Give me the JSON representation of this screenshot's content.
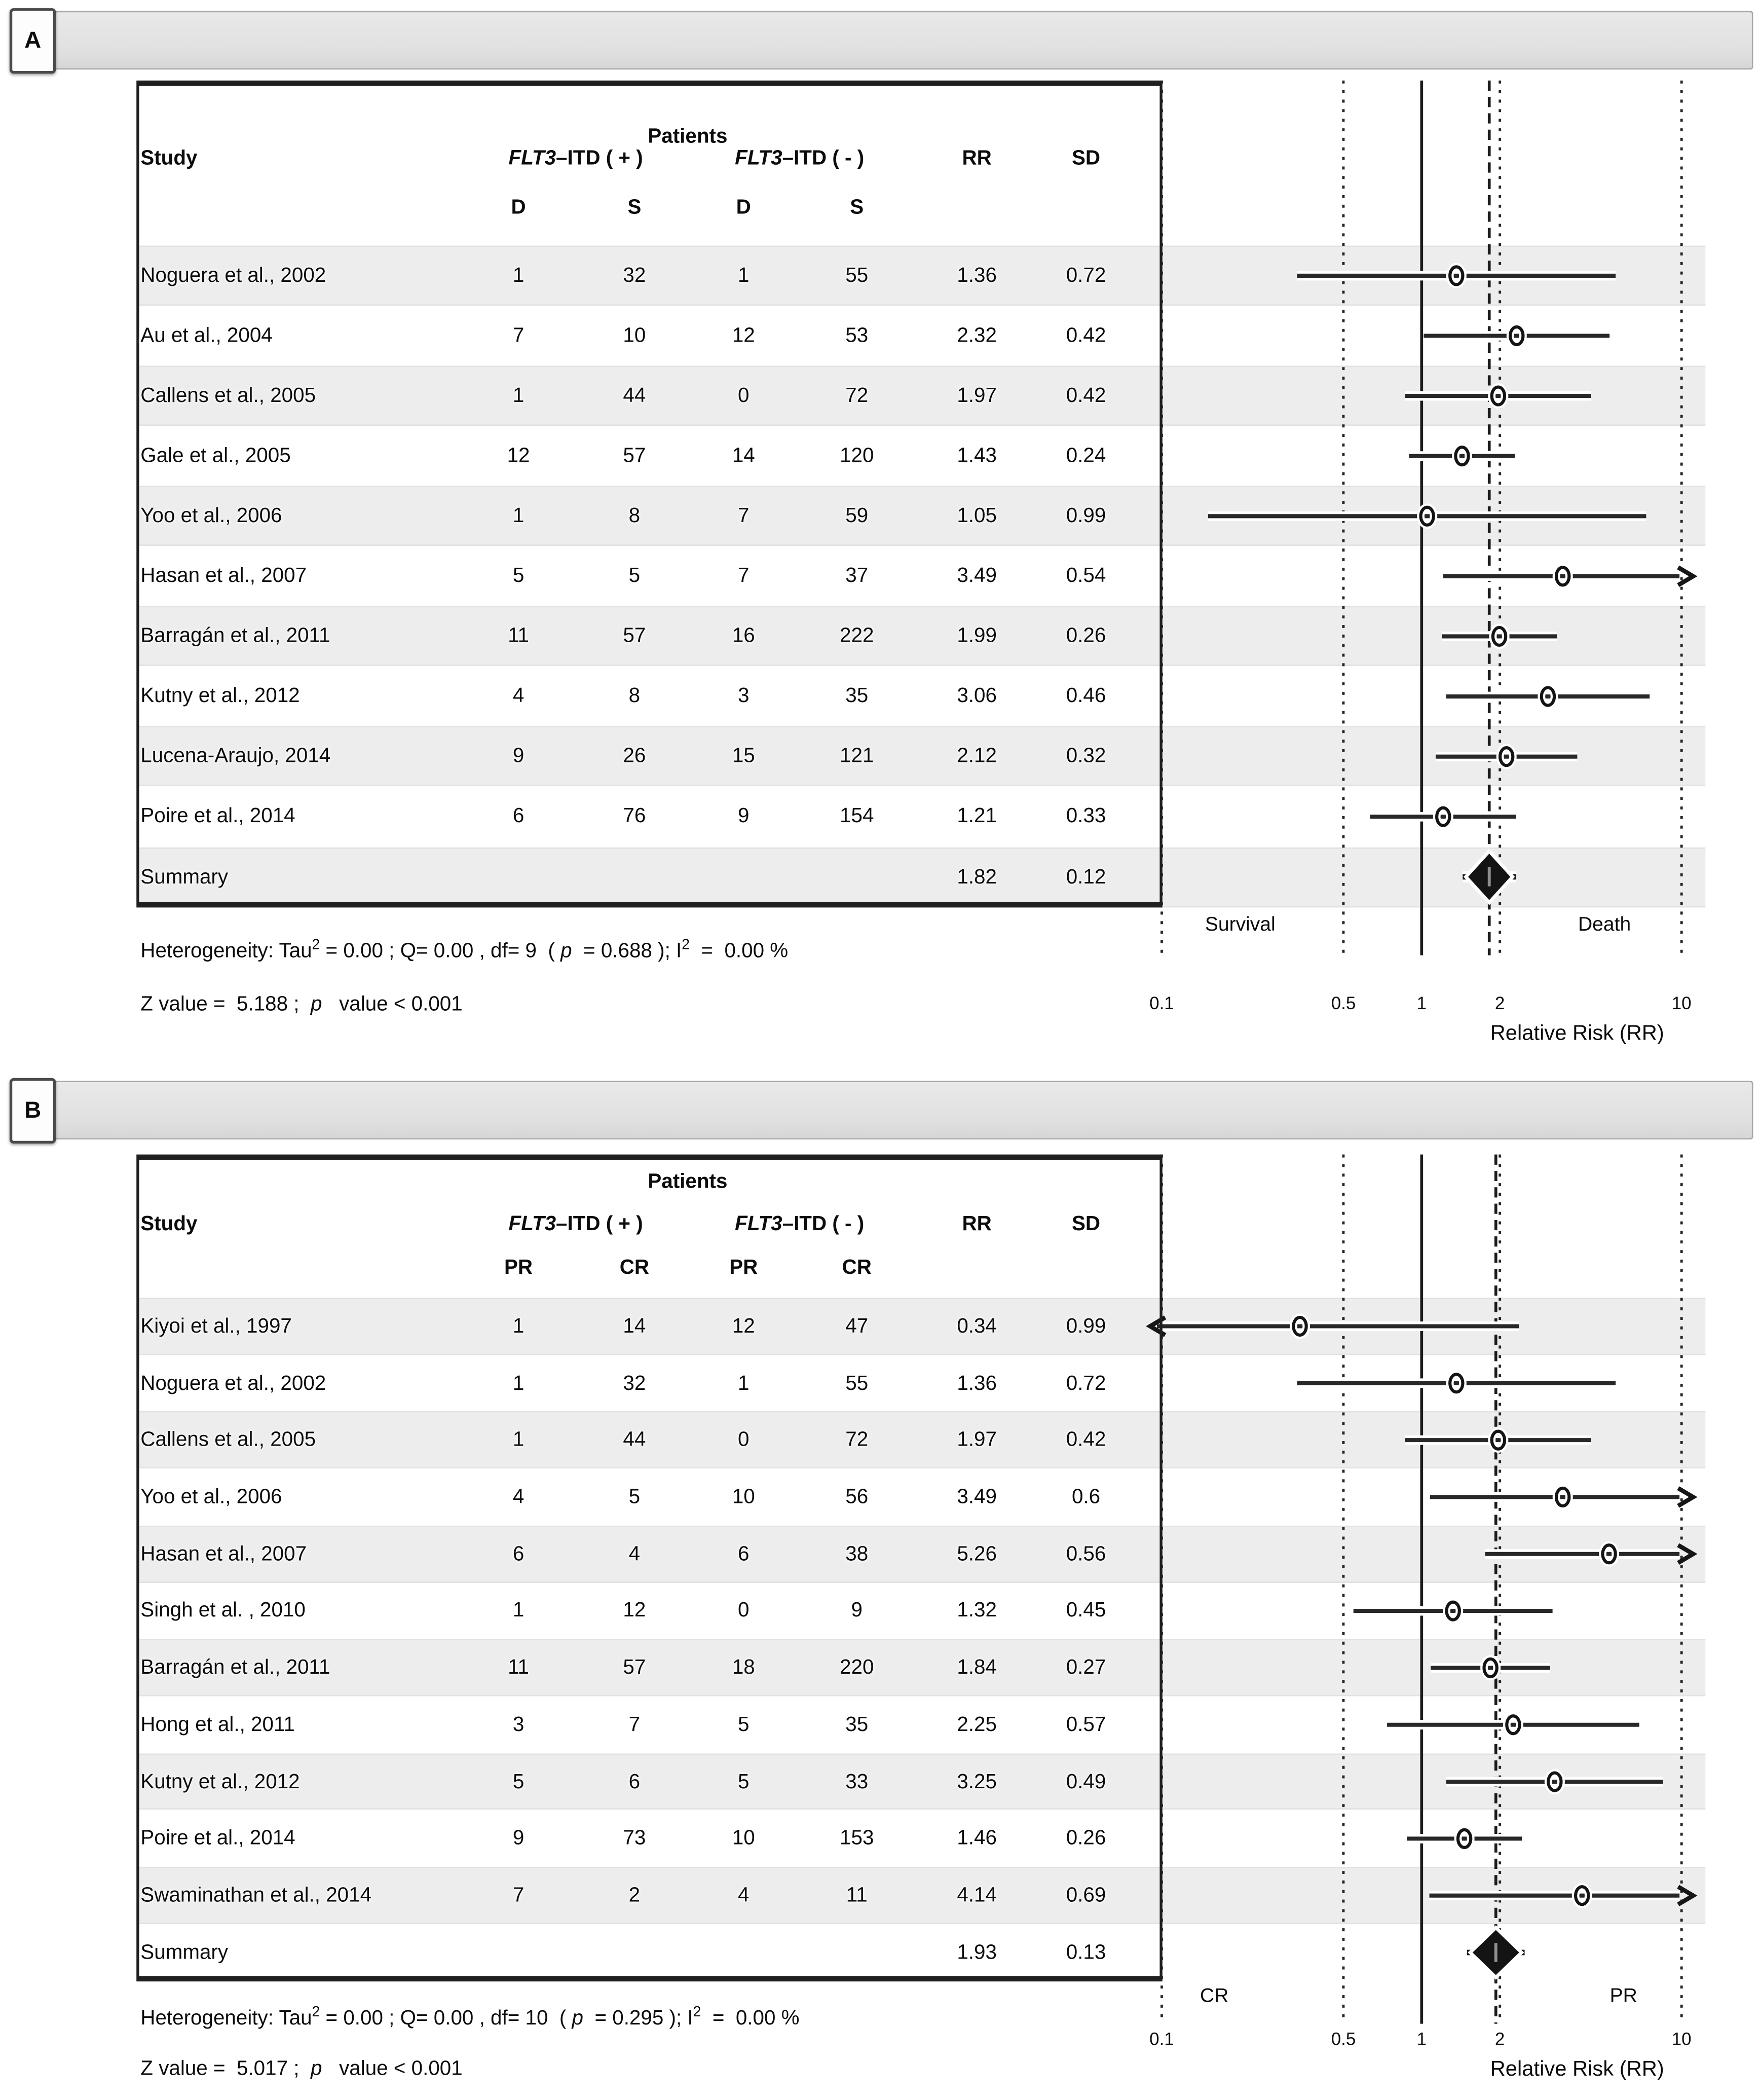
{
  "panels": [
    {
      "label": "A",
      "header": {
        "patients": "Patients",
        "study": "Study",
        "gene": "FLT3",
        "pos_suffix": "–ITD ( + )",
        "neg_suffix": "–ITD ( - )",
        "rr": "RR",
        "sd": "SD",
        "subcols": [
          "D",
          "S",
          "D",
          "S"
        ]
      },
      "summary_label": "Summary",
      "footer": {
        "het_pre": "Heterogeneity: Tau",
        "sup_a": "2",
        "het_mid": " = 0.00 ; Q= 0.00 , df= 9  ( ",
        "p_italic": "p",
        "het_mid2": "  = 0.688 ); I",
        "sup_b": "2",
        "het_end": "  =  0.00 %",
        "z_pre": "Z value =  5.188 ;  ",
        "z_p": "p",
        "z_end": "   value < 0.001"
      },
      "axis": {
        "ticks": [
          "0.1",
          "0.5",
          "1",
          "2",
          "10"
        ],
        "left_label": "Survival",
        "right_label": "Death",
        "title": "Relative Risk (RR)"
      }
    },
    {
      "label": "B",
      "header": {
        "patients": "Patients",
        "study": "Study",
        "gene": "FLT3",
        "pos_suffix": "–ITD ( + )",
        "neg_suffix": "–ITD ( - )",
        "rr": "RR",
        "sd": "SD",
        "subcols": [
          "PR",
          "CR",
          "PR",
          "CR"
        ]
      },
      "summary_label": "Summary",
      "footer": {
        "het_pre": "Heterogeneity: Tau",
        "sup_a": "2",
        "het_mid": " = 0.00 ; Q= 0.00 , df= 10  ( ",
        "p_italic": "p",
        "het_mid2": "  = 0.295 ); I",
        "sup_b": "2",
        "het_end": "  =  0.00 %",
        "z_pre": "Z value =  5.017 ;  ",
        "z_p": "p",
        "z_end": "   value < 0.001"
      },
      "axis": {
        "ticks": [
          "0.1",
          "0.5",
          "1",
          "2",
          "10"
        ],
        "left_label": "CR",
        "right_label": "PR",
        "title": "Relative Risk (RR)"
      }
    }
  ],
  "chart_data": [
    {
      "type": "forest",
      "panel": "A",
      "groups": [
        "FLT3-ITD (+)",
        "FLT3-ITD (-)"
      ],
      "outcome_columns": [
        "D",
        "S",
        "D",
        "S"
      ],
      "x_axis": {
        "scale": "log",
        "min": 0.1,
        "max": 10,
        "ticks": [
          0.1,
          0.5,
          1,
          2,
          10
        ],
        "title": "Relative Risk (RR)",
        "left_region_label": "Survival",
        "right_region_label": "Death",
        "solid_reference_line": 1,
        "dashed_summary_line": 1.82
      },
      "studies": [
        {
          "name": "Noguera et al., 2002",
          "counts": [
            1,
            32,
            1,
            55
          ],
          "rr": 1.36,
          "sd": 0.72
        },
        {
          "name": "Au et al., 2004",
          "counts": [
            7,
            10,
            12,
            53
          ],
          "rr": 2.32,
          "sd": 0.42
        },
        {
          "name": "Callens et al., 2005",
          "counts": [
            1,
            44,
            0,
            72
          ],
          "rr": 1.97,
          "sd": 0.42
        },
        {
          "name": "Gale et al., 2005",
          "counts": [
            12,
            57,
            14,
            120
          ],
          "rr": 1.43,
          "sd": 0.24
        },
        {
          "name": "Yoo et al., 2006",
          "counts": [
            1,
            8,
            7,
            59
          ],
          "rr": 1.05,
          "sd": 0.99
        },
        {
          "name": "Hasan et al., 2007",
          "counts": [
            5,
            5,
            7,
            37
          ],
          "rr": 3.49,
          "sd": 0.54
        },
        {
          "name": "Barragán et al., 2011",
          "counts": [
            11,
            57,
            16,
            222
          ],
          "rr": 1.99,
          "sd": 0.26
        },
        {
          "name": "Kutny et al., 2012",
          "counts": [
            4,
            8,
            3,
            35
          ],
          "rr": 3.06,
          "sd": 0.46
        },
        {
          "name": "Lucena-Araujo, 2014",
          "counts": [
            9,
            26,
            15,
            121
          ],
          "rr": 2.12,
          "sd": 0.32
        },
        {
          "name": "Poire et al., 2014",
          "counts": [
            6,
            76,
            9,
            154
          ],
          "rr": 1.21,
          "sd": 0.33
        }
      ],
      "summary": {
        "label": "Summary",
        "rr": 1.82,
        "sd": 0.12
      },
      "heterogeneity": {
        "tau2": 0.0,
        "q": 0.0,
        "df": 9,
        "p": 0.688,
        "i2_percent": 0.0
      },
      "z_test": {
        "z": 5.188,
        "p": "< 0.001"
      }
    },
    {
      "type": "forest",
      "panel": "B",
      "groups": [
        "FLT3-ITD (+)",
        "FLT3-ITD (-)"
      ],
      "outcome_columns": [
        "PR",
        "CR",
        "PR",
        "CR"
      ],
      "x_axis": {
        "scale": "log",
        "min": 0.1,
        "max": 10,
        "ticks": [
          0.1,
          0.5,
          1,
          2,
          10
        ],
        "title": "Relative Risk (RR)",
        "left_region_label": "CR",
        "right_region_label": "PR",
        "solid_reference_line": 1,
        "dashed_summary_line": 1.93
      },
      "studies": [
        {
          "name": "Kiyoi et al., 1997",
          "counts": [
            1,
            14,
            12,
            47
          ],
          "rr": 0.34,
          "sd": 0.99
        },
        {
          "name": "Noguera et al., 2002",
          "counts": [
            1,
            32,
            1,
            55
          ],
          "rr": 1.36,
          "sd": 0.72
        },
        {
          "name": "Callens et al., 2005",
          "counts": [
            1,
            44,
            0,
            72
          ],
          "rr": 1.97,
          "sd": 0.42
        },
        {
          "name": "Yoo et al., 2006",
          "counts": [
            4,
            5,
            10,
            56
          ],
          "rr": 3.49,
          "sd": 0.6
        },
        {
          "name": "Hasan et al., 2007",
          "counts": [
            6,
            4,
            6,
            38
          ],
          "rr": 5.26,
          "sd": 0.56
        },
        {
          "name": "Singh et al. , 2010",
          "counts": [
            1,
            12,
            0,
            9
          ],
          "rr": 1.32,
          "sd": 0.45
        },
        {
          "name": "Barragán et al., 2011",
          "counts": [
            11,
            57,
            18,
            220
          ],
          "rr": 1.84,
          "sd": 0.27
        },
        {
          "name": "Hong et al., 2011",
          "counts": [
            3,
            7,
            5,
            35
          ],
          "rr": 2.25,
          "sd": 0.57
        },
        {
          "name": "Kutny et al., 2012",
          "counts": [
            5,
            6,
            5,
            33
          ],
          "rr": 3.25,
          "sd": 0.49
        },
        {
          "name": "Poire et al., 2014",
          "counts": [
            9,
            73,
            10,
            153
          ],
          "rr": 1.46,
          "sd": 0.26
        },
        {
          "name": "Swaminathan et al., 2014",
          "counts": [
            7,
            2,
            4,
            11
          ],
          "rr": 4.14,
          "sd": 0.69
        }
      ],
      "summary": {
        "label": "Summary",
        "rr": 1.93,
        "sd": 0.13
      },
      "heterogeneity": {
        "tau2": 0.0,
        "q": 0.0,
        "df": 10,
        "p": 0.295,
        "i2_percent": 0.0
      },
      "z_test": {
        "z": 5.017,
        "p": "< 0.001"
      }
    }
  ]
}
